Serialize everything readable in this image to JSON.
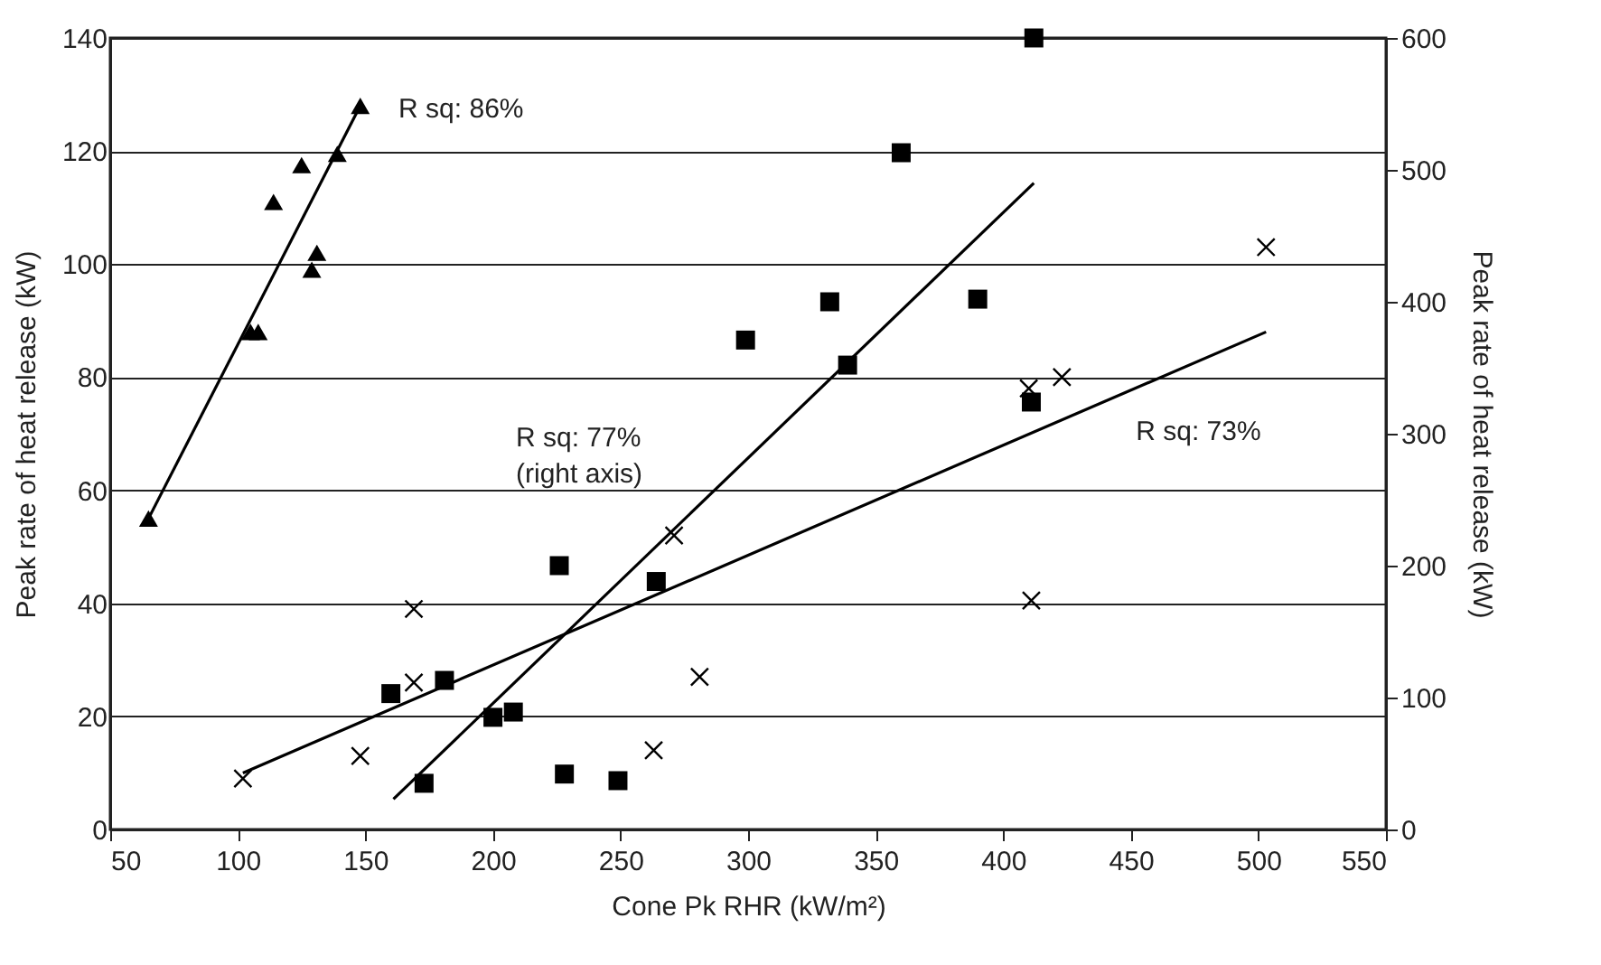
{
  "chart_data": {
    "type": "scatter",
    "xlabel": "Cone Pk RHR (kW/m²)",
    "ylabel": "Peak rate of heat release (kW)",
    "y2label": "Peak rate of heat release (kW)",
    "xlim": [
      50,
      550
    ],
    "xticks": [
      50,
      100,
      150,
      200,
      250,
      300,
      350,
      400,
      450,
      500,
      550
    ],
    "ylim": [
      0,
      140
    ],
    "yticks": [
      0,
      20,
      40,
      60,
      80,
      100,
      120,
      140
    ],
    "y2lim": [
      0,
      600
    ],
    "y2ticks": [
      0,
      100,
      200,
      300,
      400,
      500,
      600
    ],
    "grid": "y",
    "series": [
      {
        "marker": "triangle",
        "color": "#000000",
        "x": [
          65,
          105,
          108,
          114,
          125,
          139,
          131,
          129,
          148
        ],
        "values": [
          55,
          88,
          88,
          111,
          117.5,
          119.5,
          102,
          99,
          128
        ]
      },
      {
        "type": "line",
        "color": "#000000",
        "x": [
          65,
          148
        ],
        "values": [
          55,
          128
        ]
      },
      {
        "marker": "square",
        "axis": "y2",
        "color": "#000000",
        "x": [
          160,
          181,
          173,
          200,
          208,
          226,
          264,
          228,
          249,
          299,
          332,
          339,
          360,
          390,
          411,
          412
        ],
        "values": [
          103,
          113,
          35,
          85,
          89,
          200,
          188,
          42,
          37,
          371,
          400,
          352,
          513,
          402,
          324,
          600
        ]
      },
      {
        "type": "line",
        "axis": "y2",
        "color": "#000000",
        "x": [
          161,
          412
        ],
        "values": [
          23,
          490
        ]
      },
      {
        "marker": "cross",
        "color": "#000000",
        "x": [
          102,
          148,
          169,
          169,
          263,
          271,
          281,
          410,
          411,
          423,
          503
        ],
        "values": [
          9,
          13,
          39,
          26,
          14,
          52,
          27,
          78,
          40.5,
          80,
          103
        ]
      },
      {
        "type": "line",
        "color": "#000000",
        "x": [
          102,
          503
        ],
        "values": [
          10,
          88
        ]
      }
    ],
    "annotations": [
      "R sq: 86%",
      "R sq: 77%\n(right axis)",
      "R sq: 73%"
    ]
  }
}
